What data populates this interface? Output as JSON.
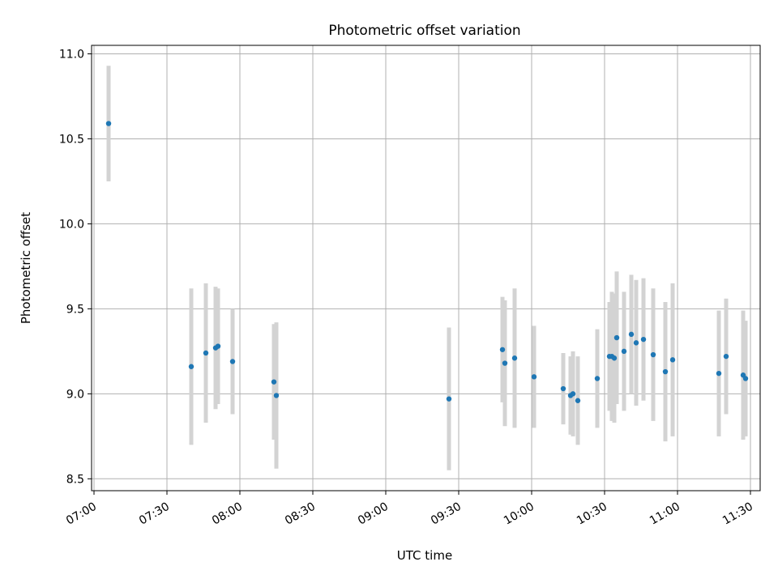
{
  "chart_data": {
    "type": "scatter",
    "title": "Photometric offset variation",
    "xlabel": "UTC time",
    "ylabel": "Photometric offset",
    "x_ticks": [
      "07:00",
      "07:30",
      "08:00",
      "08:30",
      "09:00",
      "09:30",
      "10:00",
      "10:30",
      "11:00",
      "11:30"
    ],
    "y_ticks": [
      "8.5",
      "9.0",
      "9.5",
      "10.0",
      "10.5",
      "11.0"
    ],
    "xlim": [
      "06:59",
      "11:34"
    ],
    "ylim": [
      8.43,
      11.05
    ],
    "grid": true,
    "colors": {
      "marker": "#1f77b4",
      "errorbar": "#d3d3d3",
      "grid": "#b0b0b0"
    },
    "points": [
      {
        "x": "07:06",
        "y": 10.59,
        "yerr": 0.34
      },
      {
        "x": "07:40",
        "y": 9.16,
        "yerr": 0.46
      },
      {
        "x": "07:46",
        "y": 9.24,
        "yerr": 0.41
      },
      {
        "x": "07:50",
        "y": 9.27,
        "yerr": 0.36
      },
      {
        "x": "07:51",
        "y": 9.28,
        "yerr": 0.34
      },
      {
        "x": "07:57",
        "y": 9.19,
        "yerr": 0.31
      },
      {
        "x": "08:14",
        "y": 9.07,
        "yerr": 0.34
      },
      {
        "x": "08:15",
        "y": 8.99,
        "yerr": 0.43
      },
      {
        "x": "09:26",
        "y": 8.97,
        "yerr": 0.42
      },
      {
        "x": "09:48",
        "y": 9.26,
        "yerr": 0.31
      },
      {
        "x": "09:49",
        "y": 9.18,
        "yerr": 0.37
      },
      {
        "x": "09:53",
        "y": 9.21,
        "yerr": 0.41
      },
      {
        "x": "10:01",
        "y": 9.1,
        "yerr": 0.3
      },
      {
        "x": "10:13",
        "y": 9.03,
        "yerr": 0.21
      },
      {
        "x": "10:16",
        "y": 8.99,
        "yerr": 0.23
      },
      {
        "x": "10:17",
        "y": 9.0,
        "yerr": 0.25
      },
      {
        "x": "10:19",
        "y": 8.96,
        "yerr": 0.26
      },
      {
        "x": "10:27",
        "y": 9.09,
        "yerr": 0.29
      },
      {
        "x": "10:32",
        "y": 9.22,
        "yerr": 0.32
      },
      {
        "x": "10:33",
        "y": 9.22,
        "yerr": 0.38
      },
      {
        "x": "10:34",
        "y": 9.21,
        "yerr": 0.38
      },
      {
        "x": "10:35",
        "y": 9.33,
        "yerr": 0.39
      },
      {
        "x": "10:38",
        "y": 9.25,
        "yerr": 0.35
      },
      {
        "x": "10:41",
        "y": 9.35,
        "yerr": 0.35
      },
      {
        "x": "10:43",
        "y": 9.3,
        "yerr": 0.37
      },
      {
        "x": "10:46",
        "y": 9.32,
        "yerr": 0.36
      },
      {
        "x": "10:50",
        "y": 9.23,
        "yerr": 0.39
      },
      {
        "x": "10:55",
        "y": 9.13,
        "yerr": 0.41
      },
      {
        "x": "10:58",
        "y": 9.2,
        "yerr": 0.45
      },
      {
        "x": "11:17",
        "y": 9.12,
        "yerr": 0.37
      },
      {
        "x": "11:20",
        "y": 9.22,
        "yerr": 0.34
      },
      {
        "x": "11:27",
        "y": 9.11,
        "yerr": 0.38
      },
      {
        "x": "11:28",
        "y": 9.09,
        "yerr": 0.34
      }
    ]
  }
}
